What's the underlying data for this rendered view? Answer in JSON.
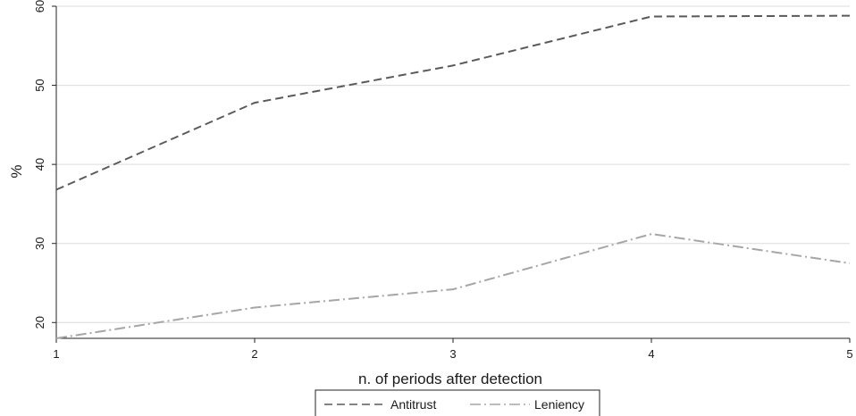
{
  "chart_data": {
    "type": "line",
    "title": "",
    "xlabel": "n. of periods after detection",
    "ylabel": "%",
    "x": [
      1,
      2,
      3,
      4,
      5
    ],
    "xlim": [
      1,
      5
    ],
    "ylim": [
      18,
      60
    ],
    "xticks": [
      "1",
      "2",
      "3",
      "4",
      "5"
    ],
    "yticks": [
      20,
      30,
      40,
      50,
      60
    ],
    "grid": true,
    "legend_position": "bottom-center",
    "series": [
      {
        "name": "Antitrust",
        "values": [
          36.8,
          47.8,
          52.5,
          58.7,
          58.8
        ],
        "color": "#5a5a5a",
        "style": "dashed"
      },
      {
        "name": "Leniency",
        "values": [
          18.0,
          21.9,
          24.2,
          31.2,
          27.5
        ],
        "color": "#a6a6a6",
        "style": "dash-dot"
      }
    ]
  }
}
